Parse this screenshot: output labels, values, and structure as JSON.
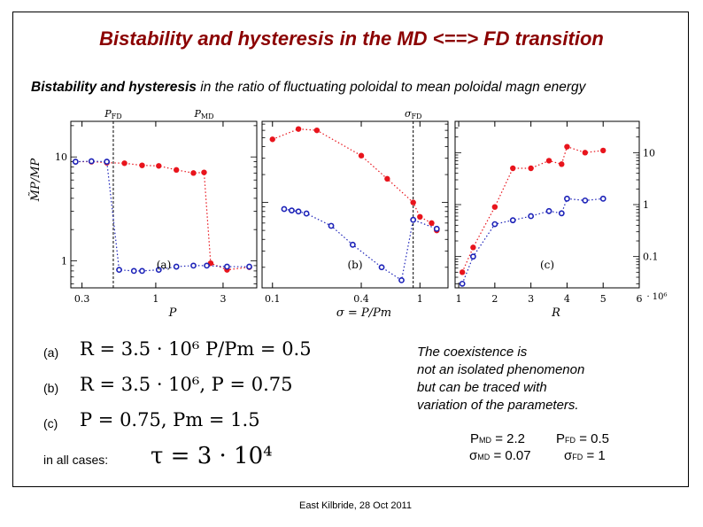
{
  "title": "Bistability and hysteresis in the MD <==> FD transition",
  "subtitle": {
    "bold": "Bistability and hysteresis",
    "rest": " in the ratio of fluctuating poloidal to mean poloidal magn energy"
  },
  "colors": {
    "title": "#8b0000",
    "upper_branch": "#e8141c",
    "lower_branch": "#1c22b8"
  },
  "chart_data": [
    {
      "type": "scatter",
      "panel_label": "(a)",
      "xlabel": "P",
      "ylabel": "M̃P/MP",
      "xscale": "log",
      "yscale": "log",
      "xlim": [
        0.25,
        5.2
      ],
      "ylim": [
        0.55,
        22
      ],
      "xticks": [
        {
          "v": 0.3,
          "label": "0.3"
        },
        {
          "v": 1,
          "label": "1"
        },
        {
          "v": 3,
          "label": "3"
        }
      ],
      "yticks": [
        {
          "v": 10,
          "label": "10"
        },
        {
          "v": 1,
          "label": "1"
        }
      ],
      "vlines": [
        {
          "x": 0.5,
          "label": "P_FD"
        }
      ],
      "top_annotations": [
        {
          "x": 0.5,
          "label": "P_FD"
        },
        {
          "x": 2.2,
          "label": "P_MD"
        }
      ],
      "series": [
        {
          "name": "",
          "color_key": "upper_branch",
          "marker": "filled",
          "x": [
            0.27,
            0.35,
            0.45,
            0.6,
            0.8,
            1.05,
            1.4,
            1.85,
            2.2,
            2.45,
            3.2,
            4.6
          ],
          "y": [
            9.0,
            9.0,
            8.8,
            8.7,
            8.3,
            8.2,
            7.5,
            7.0,
            7.1,
            0.95,
            0.82,
            0.87
          ]
        },
        {
          "name": "",
          "color_key": "lower_branch",
          "marker": "open",
          "x": [
            0.27,
            0.35,
            0.45,
            0.55,
            0.7,
            0.8,
            1.05,
            1.4,
            1.85,
            2.3,
            3.2,
            4.6
          ],
          "y": [
            9.0,
            9.1,
            9.0,
            0.82,
            0.8,
            0.8,
            0.82,
            0.88,
            0.9,
            0.9,
            0.88,
            0.88
          ]
        }
      ]
    },
    {
      "type": "scatter",
      "panel_label": "(b)",
      "xlabel": "σ = P/Pm",
      "xscale": "log",
      "yscale": "log",
      "xlim": [
        0.085,
        1.55
      ],
      "ylim": [
        1.2,
        75
      ],
      "xticks": [
        {
          "v": 0.1,
          "label": "0.1"
        },
        {
          "v": 0.4,
          "label": "0.4"
        },
        {
          "v": 1,
          "label": "1"
        }
      ],
      "vlines": [
        {
          "x": 0.9,
          "label": "σ_FD"
        }
      ],
      "top_annotations": [
        {
          "x": 0.9,
          "label": "σ_FD"
        }
      ],
      "series": [
        {
          "name": "",
          "color_key": "upper_branch",
          "marker": "filled",
          "x": [
            0.1,
            0.15,
            0.2,
            0.4,
            0.6,
            0.9,
            1.0,
            1.2,
            1.3
          ],
          "y": [
            48,
            62,
            60,
            32,
            18,
            10,
            7,
            6,
            5
          ]
        },
        {
          "name": "",
          "color_key": "lower_branch",
          "marker": "open",
          "x": [
            0.12,
            0.135,
            0.15,
            0.17,
            0.25,
            0.35,
            0.55,
            0.75,
            0.9,
            1.3
          ],
          "y": [
            8.5,
            8.2,
            8.0,
            7.6,
            5.6,
            3.5,
            2.0,
            1.45,
            6.5,
            5.2
          ]
        }
      ]
    },
    {
      "type": "scatter",
      "panel_label": "(c)",
      "xlabel": "R",
      "xscale": "linear",
      "yscale": "log",
      "xlim": [
        0.9,
        6.0
      ],
      "ylim": [
        0.025,
        40
      ],
      "xticks": [
        {
          "v": 1,
          "label": "1"
        },
        {
          "v": 2,
          "label": "2"
        },
        {
          "v": 3,
          "label": "3"
        },
        {
          "v": 4,
          "label": "4"
        },
        {
          "v": 5,
          "label": "5"
        },
        {
          "v": 6,
          "label": "6"
        }
      ],
      "xtick_suffix": "· 10⁶",
      "yticks_right": [
        {
          "v": 10,
          "label": "10"
        },
        {
          "v": 1,
          "label": "1"
        },
        {
          "v": 0.1,
          "label": "0.1"
        }
      ],
      "series": [
        {
          "name": "",
          "color_key": "upper_branch",
          "marker": "filled",
          "x": [
            1.1,
            1.4,
            2.0,
            2.5,
            3.0,
            3.5,
            3.85,
            4.0,
            4.5,
            5.0
          ],
          "y": [
            0.05,
            0.15,
            0.9,
            5.0,
            5.0,
            7.0,
            6.0,
            13.0,
            10.0,
            11.0
          ]
        },
        {
          "name": "",
          "color_key": "lower_branch",
          "marker": "open",
          "x": [
            1.1,
            1.4,
            2.0,
            2.5,
            3.0,
            3.5,
            3.85,
            4.0,
            4.5,
            5.0
          ],
          "y": [
            0.03,
            0.1,
            0.42,
            0.5,
            0.6,
            0.75,
            0.68,
            1.3,
            1.2,
            1.3
          ]
        }
      ]
    }
  ],
  "cases": [
    {
      "label": "(a)",
      "formula": "R = 3.5 · 10⁶      P/Pm = 0.5"
    },
    {
      "label": "(b)",
      "formula": "R = 3.5 · 10⁶,  P = 0.75"
    },
    {
      "label": "(c)",
      "formula": "P = 0.75,  Pm = 1.5"
    }
  ],
  "all_cases": {
    "label": "in all cases:",
    "formula": "τ  =  3 · 10⁴"
  },
  "note": [
    "The coexistence is",
    "not an isolated phenomenon",
    "but can be traced with",
    "variation of  the parameters."
  ],
  "params": {
    "p_md": {
      "sym": "P",
      "sub": "MD",
      "val": "= 2.2"
    },
    "p_fd": {
      "sym": "P",
      "sub": "FD",
      "val": "= 0.5"
    },
    "s_md": {
      "sym": "σ",
      "sub": "MD",
      "val": "= 0.07"
    },
    "s_fd": {
      "sym": "σ",
      "sub": "FD",
      "val": "= 1"
    }
  },
  "footer": "East Kilbride, 28 Oct 2011"
}
